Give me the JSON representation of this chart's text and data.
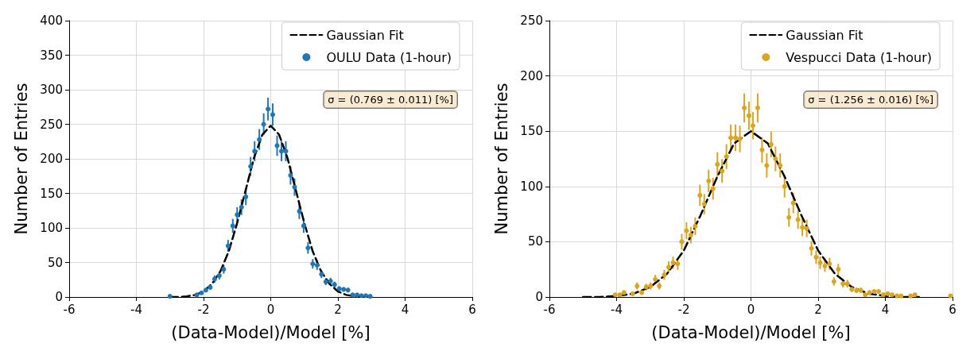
{
  "chart_data": [
    {
      "type": "scatter",
      "xlabel": "(Data-Model)/Model [%]",
      "ylabel": "Number of Entries",
      "xlim": [
        -6,
        6
      ],
      "xticks": [
        -6,
        -4,
        -2,
        0,
        2,
        4,
        6
      ],
      "ylim": [
        0,
        400
      ],
      "yticks": [
        0,
        50,
        100,
        150,
        200,
        250,
        300,
        350,
        400
      ],
      "grid": true,
      "legend": "top right",
      "annotations": [
        "σ = (0.769 ± 0.011) [%]"
      ],
      "series": [
        {
          "name": "Gaussian Fit",
          "type": "line",
          "color": "#000000",
          "line_style": "dashed",
          "marker": "none",
          "x": [
            -3,
            -2.75,
            -2.5,
            -2.25,
            -2,
            -1.75,
            -1.5,
            -1.25,
            -1,
            -0.75,
            -0.5,
            -0.25,
            0,
            0.25,
            0.5,
            0.75,
            1,
            1.25,
            1.5,
            1.75,
            2,
            2.25,
            2.5,
            2.75,
            3
          ],
          "values": [
            0,
            0,
            1,
            3,
            8,
            19,
            37,
            66,
            107,
            154,
            201,
            235,
            248,
            235,
            201,
            154,
            107,
            66,
            37,
            19,
            8,
            3,
            1,
            0,
            0
          ]
        },
        {
          "name": "OULU Data (1-hour)",
          "type": "scatter",
          "color": "#1f77b4",
          "marker": "circle",
          "x": [
            -3.0,
            -2.2,
            -2.06,
            -1.93,
            -1.8,
            -1.67,
            -1.53,
            -1.4,
            -1.27,
            -1.13,
            -1.0,
            -0.87,
            -0.74,
            -0.6,
            -0.48,
            -0.34,
            -0.21,
            -0.08,
            0.06,
            0.19,
            0.32,
            0.45,
            0.59,
            0.71,
            0.85,
            0.98,
            1.11,
            1.25,
            1.38,
            1.51,
            1.64,
            1.78,
            1.9,
            2.04,
            2.17,
            2.3,
            2.44,
            2.57,
            2.7,
            2.83,
            2.96
          ],
          "values": [
            1,
            3,
            6,
            10,
            14,
            26,
            31,
            40,
            74,
            103,
            119,
            130,
            145,
            189,
            211,
            228,
            250,
            272,
            264,
            219,
            211,
            211,
            176,
            159,
            124,
            103,
            71,
            48,
            46,
            33,
            22,
            23,
            18,
            12,
            11,
            10,
            3,
            3,
            2,
            2,
            1
          ],
          "errors": [
            1,
            1.7,
            2.4,
            3.2,
            3.7,
            5.1,
            5.6,
            6.3,
            8.6,
            10.1,
            10.9,
            11.4,
            12,
            13.7,
            14.5,
            15.1,
            15.8,
            16.5,
            16.2,
            14.8,
            14.5,
            14.5,
            13.3,
            12.6,
            11.1,
            10.1,
            8.4,
            6.9,
            6.8,
            5.7,
            4.7,
            4.8,
            4.2,
            3.5,
            3.3,
            3.2,
            1.7,
            1.7,
            1.4,
            1.4,
            1
          ]
        }
      ]
    },
    {
      "type": "scatter",
      "xlabel": "(Data-Model)/Model [%]",
      "ylabel": "Number of Entries",
      "xlim": [
        -6,
        6
      ],
      "xticks": [
        -6,
        -4,
        -2,
        0,
        2,
        4,
        6
      ],
      "ylim": [
        0,
        250
      ],
      "yticks": [
        0,
        50,
        100,
        150,
        200,
        250
      ],
      "grid": true,
      "legend": "top right",
      "annotations": [
        "σ = (1.256 ± 0.016) [%]"
      ],
      "series": [
        {
          "name": "Gaussian Fit",
          "type": "line",
          "color": "#000000",
          "line_style": "dashed",
          "marker": "none",
          "x": [
            -5,
            -4.5,
            -4,
            -3.5,
            -3,
            -2.5,
            -2,
            -1.5,
            -1,
            -0.5,
            0,
            0.5,
            1,
            1.5,
            2,
            2.5,
            3,
            3.5,
            4,
            4.5,
            5
          ],
          "values": [
            0,
            0,
            1,
            3,
            9,
            21,
            42,
            74,
            109,
            139,
            150,
            139,
            109,
            74,
            42,
            21,
            9,
            3,
            1,
            0,
            0
          ]
        },
        {
          "name": "Vespucci Data (1-hour)",
          "type": "scatter",
          "color": "#daa520",
          "marker": "circle",
          "x": [
            -4.04,
            -3.9,
            -3.78,
            -3.52,
            -3.39,
            -3.25,
            -3.12,
            -2.99,
            -2.85,
            -2.73,
            -2.58,
            -2.45,
            -2.32,
            -2.18,
            -2.06,
            -1.92,
            -1.79,
            -1.66,
            -1.52,
            -1.39,
            -1.26,
            -1.13,
            -1.0,
            -0.86,
            -0.73,
            -0.6,
            -0.46,
            -0.33,
            -0.2,
            -0.06,
            0.06,
            0.2,
            0.33,
            0.47,
            0.6,
            0.73,
            0.87,
            1.0,
            1.13,
            1.26,
            1.4,
            1.53,
            1.66,
            1.8,
            1.94,
            2.06,
            2.2,
            2.34,
            2.47,
            2.6,
            2.74,
            2.87,
            3.0,
            3.14,
            3.27,
            3.4,
            3.53,
            3.67,
            3.8,
            3.94,
            4.07,
            4.2,
            4.35,
            4.47,
            4.75,
            4.88,
            5.94
          ],
          "values": [
            2,
            2,
            4,
            3,
            10,
            4,
            9,
            10,
            16,
            10,
            20,
            27,
            31,
            30,
            50,
            60,
            56,
            64,
            92,
            84,
            105,
            98,
            120,
            114,
            127,
            144,
            144,
            143,
            171,
            164,
            155,
            171,
            133,
            119,
            138,
            125,
            119,
            100,
            72,
            85,
            70,
            63,
            62,
            44,
            36,
            31,
            28,
            30,
            14,
            25,
            12,
            12,
            7,
            6,
            6,
            2,
            4,
            5,
            5,
            2,
            3,
            2,
            1,
            1,
            1,
            2,
            1
          ],
          "errors": [
            1.4,
            1.4,
            2,
            1.7,
            3.2,
            2,
            3,
            3.2,
            4,
            3.2,
            4.5,
            5.2,
            5.6,
            5.5,
            7.1,
            7.7,
            7.5,
            8,
            9.6,
            9.2,
            10.2,
            9.9,
            11,
            10.7,
            11.3,
            12,
            12,
            12,
            13.1,
            12.8,
            12.4,
            13.1,
            11.5,
            10.9,
            11.7,
            11.2,
            10.9,
            10,
            8.5,
            9.2,
            8.4,
            7.9,
            7.9,
            6.6,
            6,
            5.6,
            5.3,
            5.5,
            3.7,
            5,
            3.5,
            3.5,
            2.6,
            2.4,
            2.4,
            1.4,
            2,
            2.2,
            2.2,
            1.4,
            1.7,
            1.4,
            1,
            1,
            1,
            1.4,
            1
          ]
        }
      ]
    }
  ]
}
